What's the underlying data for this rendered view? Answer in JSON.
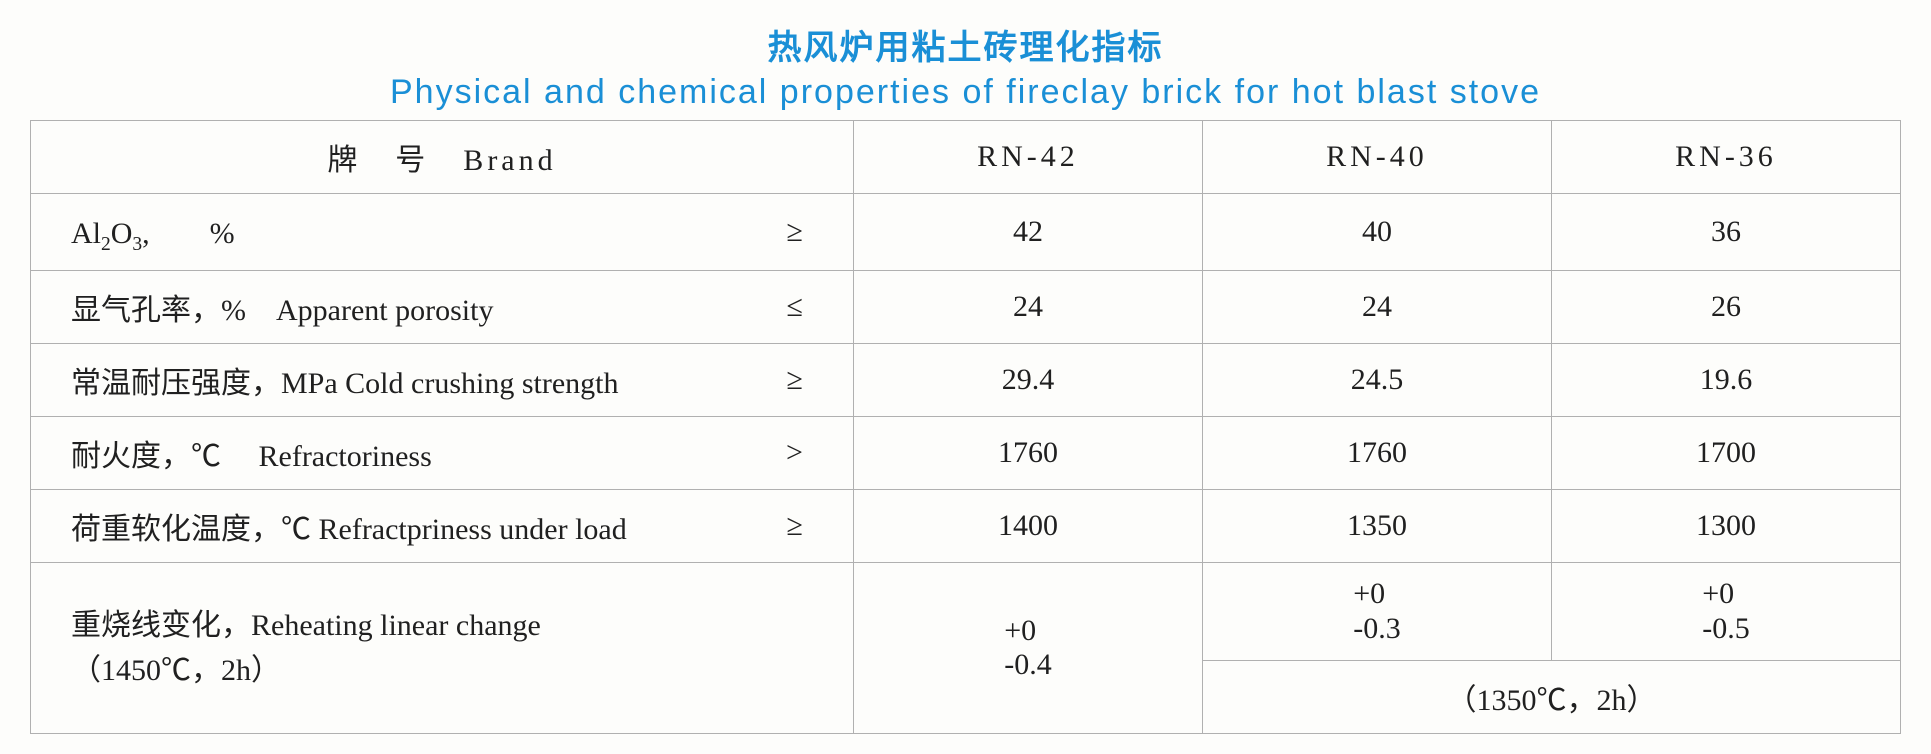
{
  "colors": {
    "title": "#1a8fd6",
    "text": "#202020",
    "border": "#b0b0b0",
    "background": "#fdfdfb"
  },
  "fontsizes": {
    "title": 34,
    "cell": 30
  },
  "title": {
    "cn": "热风炉用粘土砖理化指标",
    "en": "Physical  and  chemical  properties  of  fireclay  brick  for  hot  blast  stove"
  },
  "header": {
    "brand_label": "牌　号　Brand",
    "brands": [
      "RN-42",
      "RN-40",
      "RN-36"
    ]
  },
  "rows": [
    {
      "label_html": "Al<span class=\"sub\">2</span>O<span class=\"sub\">3</span>,　　%",
      "op": "≥",
      "vals": [
        "42",
        "40",
        "36"
      ]
    },
    {
      "label_html": "显气孔率，%　Apparent  porosity",
      "op": "≤",
      "vals": [
        "24",
        "24",
        "26"
      ]
    },
    {
      "label_html": "常温耐压强度，MPa  Cold  crushing  strength",
      "op": "≥",
      "vals": [
        "29.4",
        "24.5",
        "19.6"
      ]
    },
    {
      "label_html": "耐火度，℃　 Refractoriness",
      "op": ">",
      "vals": [
        "1760",
        "1760",
        "1700"
      ]
    },
    {
      "label_html": "荷重软化温度，℃ Refractpriness  under  load",
      "op": "≥",
      "vals": [
        "1400",
        "1350",
        "1300"
      ]
    }
  ],
  "lastrow": {
    "label_line1": "重烧线变化，Reheating  linear  change",
    "label_line2": "（1450℃，2h）",
    "col1_line1": "+0",
    "col1_line2": "-0.4",
    "col2_line1": "+0",
    "col2_line2": "-0.3",
    "col3_line1": "+0",
    "col3_line2": "-0.5",
    "note": "（1350℃，2h）"
  }
}
